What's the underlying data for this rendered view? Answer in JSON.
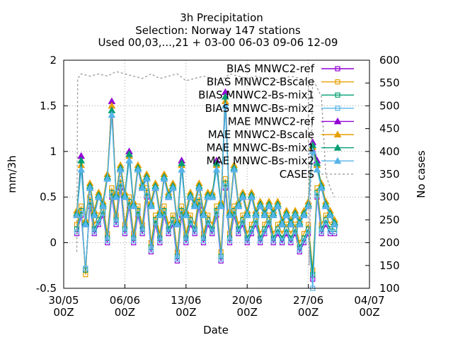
{
  "chart_data": {
    "type": "line",
    "title": [
      "3h Precipitation",
      "Selection: Norway     147 stations",
      "Used 00,03,...,21 + 03-00 06-03 09-06 12-09"
    ],
    "xlabel": "Date",
    "ylabel": "mm/3h",
    "y2label": "No cases",
    "ylim": [
      -0.5,
      2
    ],
    "y2lim": [
      100,
      600
    ],
    "yticks": [
      "-0.5",
      "0",
      "0.5",
      "1",
      "1.5",
      "2"
    ],
    "y2ticks": [
      "100",
      "150",
      "200",
      "250",
      "300",
      "350",
      "400",
      "450",
      "500",
      "550",
      "600"
    ],
    "xticks": [
      {
        "day": 0,
        "label": "30/05",
        "sub": "00Z"
      },
      {
        "day": 7,
        "label": "06/06",
        "sub": "00Z"
      },
      {
        "day": 14,
        "label": "13/06",
        "sub": "00Z"
      },
      {
        "day": 21,
        "label": "20/06",
        "sub": "00Z"
      },
      {
        "day": 28,
        "label": "27/06",
        "sub": "00Z"
      },
      {
        "day": 35,
        "label": "04/07",
        "sub": "00Z"
      }
    ],
    "xlim_days": [
      0,
      35
    ],
    "grid": true,
    "legend_position": "top-right",
    "series": [
      {
        "name": "BIAS MNWC2-ref",
        "color": "#9400d3",
        "marker": "square",
        "axis": "y",
        "x": [
          1.5,
          2,
          2.5,
          3,
          3.5,
          4,
          4.5,
          5,
          5.5,
          6,
          6.5,
          7,
          7.5,
          8,
          8.5,
          9,
          9.5,
          10,
          10.5,
          11,
          11.5,
          12,
          12.5,
          13,
          13.5,
          14,
          14.5,
          15,
          15.5,
          16,
          16.5,
          17,
          17.5,
          18,
          18.5,
          19,
          19.5,
          20,
          20.5,
          21,
          21.5,
          22,
          22.5,
          23,
          23.5,
          24,
          24.5,
          25,
          25.5,
          26,
          26.5,
          27,
          27.5,
          28,
          28.5,
          29,
          29.5,
          30,
          30.5,
          31
        ],
        "y": [
          0.1,
          0.3,
          -0.3,
          0.4,
          0.1,
          0.2,
          0.3,
          0.0,
          0.5,
          0.2,
          0.6,
          0.1,
          0.4,
          0.0,
          0.3,
          0.1,
          0.5,
          -0.1,
          0.2,
          0.0,
          0.3,
          0.1,
          0.2,
          -0.2,
          0.3,
          0.0,
          0.2,
          0.1,
          0.4,
          0.0,
          0.2,
          0.1,
          0.3,
          -0.2,
          0.6,
          0.0,
          0.3,
          0.1,
          0.2,
          0.0,
          0.1,
          0.2,
          0.0,
          0.1,
          0.2,
          0.0,
          0.1,
          0.0,
          0.1,
          0.0,
          0.1,
          -0.1,
          0.0,
          0.1,
          -0.4,
          0.5,
          0.1,
          0.2,
          0.1,
          0.1
        ]
      },
      {
        "name": "BIAS MNWC2-Bscale",
        "color": "#e69f00",
        "marker": "square",
        "axis": "y",
        "x": [
          1.5,
          2,
          2.5,
          3,
          3.5,
          4,
          4.5,
          5,
          5.5,
          6,
          6.5,
          7,
          7.5,
          8,
          8.5,
          9,
          9.5,
          10,
          10.5,
          11,
          11.5,
          12,
          12.5,
          13,
          13.5,
          14,
          14.5,
          15,
          15.5,
          16,
          16.5,
          17,
          17.5,
          18,
          18.5,
          19,
          19.5,
          20,
          20.5,
          21,
          21.5,
          22,
          22.5,
          23,
          23.5,
          24,
          24.5,
          25,
          25.5,
          26,
          26.5,
          27,
          27.5,
          28,
          28.5,
          29,
          29.5,
          30,
          30.5,
          31
        ],
        "y": [
          0.2,
          0.4,
          -0.35,
          0.5,
          0.2,
          0.3,
          0.4,
          0.1,
          0.6,
          0.3,
          0.7,
          0.2,
          0.5,
          0.1,
          0.4,
          0.2,
          0.6,
          0.0,
          0.3,
          0.1,
          0.4,
          0.2,
          0.3,
          -0.1,
          0.4,
          0.1,
          0.3,
          0.2,
          0.5,
          0.1,
          0.3,
          0.2,
          0.4,
          -0.1,
          0.7,
          0.1,
          0.4,
          0.2,
          0.3,
          0.1,
          0.2,
          0.3,
          0.1,
          0.2,
          0.3,
          0.1,
          0.2,
          0.1,
          0.2,
          0.1,
          0.2,
          0.0,
          0.1,
          0.2,
          -0.3,
          0.6,
          0.2,
          0.3,
          0.2,
          0.2
        ]
      },
      {
        "name": "BIAS MNWC2-Bs-mix1",
        "color": "#009e73",
        "marker": "square",
        "axis": "y",
        "x": [
          1.5,
          2,
          2.5,
          3,
          3.5,
          4,
          4.5,
          5,
          5.5,
          6,
          6.5,
          7,
          7.5,
          8,
          8.5,
          9,
          9.5,
          10,
          10.5,
          11,
          11.5,
          12,
          12.5,
          13,
          13.5,
          14,
          14.5,
          15,
          15.5,
          16,
          16.5,
          17,
          17.5,
          18,
          18.5,
          19,
          19.5,
          20,
          20.5,
          21,
          21.5,
          22,
          22.5,
          23,
          23.5,
          24,
          24.5,
          25,
          25.5,
          26,
          26.5,
          27,
          27.5,
          28,
          28.5,
          29,
          29.5,
          30,
          30.5,
          31
        ],
        "y": [
          0.15,
          0.35,
          -0.3,
          0.45,
          0.15,
          0.25,
          0.35,
          0.05,
          0.55,
          0.25,
          0.65,
          0.15,
          0.45,
          0.05,
          0.35,
          0.15,
          0.55,
          -0.05,
          0.25,
          0.05,
          0.35,
          0.15,
          0.25,
          -0.15,
          0.35,
          0.05,
          0.25,
          0.15,
          0.45,
          0.05,
          0.25,
          0.15,
          0.35,
          -0.15,
          0.65,
          0.05,
          0.35,
          0.15,
          0.25,
          0.05,
          0.15,
          0.25,
          0.05,
          0.15,
          0.25,
          0.05,
          0.15,
          0.05,
          0.15,
          0.05,
          0.15,
          -0.05,
          0.05,
          0.15,
          -0.35,
          0.55,
          0.15,
          0.25,
          0.15,
          0.15
        ]
      },
      {
        "name": "BIAS MNWC-Bs-mix2",
        "color": "#56b4e9",
        "marker": "square",
        "axis": "y",
        "x": [
          1.5,
          2,
          2.5,
          3,
          3.5,
          4,
          4.5,
          5,
          5.5,
          6,
          6.5,
          7,
          7.5,
          8,
          8.5,
          9,
          9.5,
          10,
          10.5,
          11,
          11.5,
          12,
          12.5,
          13,
          13.5,
          14,
          14.5,
          15,
          15.5,
          16,
          16.5,
          17,
          17.5,
          18,
          18.5,
          19,
          19.5,
          20,
          20.5,
          21,
          21.5,
          22,
          22.5,
          23,
          23.5,
          24,
          24.5,
          25,
          25.5,
          26,
          26.5,
          27,
          27.5,
          28,
          28.5,
          29,
          29.5,
          30,
          30.5,
          31
        ],
        "y": [
          0.12,
          0.32,
          -0.28,
          0.42,
          0.12,
          0.22,
          0.32,
          0.02,
          0.52,
          0.22,
          0.62,
          0.12,
          0.42,
          0.02,
          0.32,
          0.12,
          0.52,
          -0.08,
          0.22,
          0.02,
          0.32,
          0.12,
          0.22,
          -0.18,
          0.32,
          0.02,
          0.22,
          0.12,
          0.42,
          0.02,
          0.22,
          0.12,
          0.32,
          -0.18,
          0.62,
          0.02,
          0.32,
          0.12,
          0.22,
          0.02,
          0.12,
          0.22,
          0.02,
          0.12,
          0.22,
          0.02,
          0.12,
          0.02,
          0.12,
          0.02,
          0.12,
          -0.08,
          0.02,
          0.12,
          -0.5,
          0.52,
          0.12,
          0.22,
          0.12,
          0.12
        ]
      },
      {
        "name": "MAE MNWC2-ref",
        "color": "#9400d3",
        "marker": "triangle",
        "axis": "y",
        "x": [
          1.5,
          2,
          2.5,
          3,
          3.5,
          4,
          4.5,
          5,
          5.5,
          6,
          6.5,
          7,
          7.5,
          8,
          8.5,
          9,
          9.5,
          10,
          10.5,
          11,
          11.5,
          12,
          12.5,
          13,
          13.5,
          14,
          14.5,
          15,
          15.5,
          16,
          16.5,
          17,
          17.5,
          18,
          18.5,
          19,
          19.5,
          20,
          20.5,
          21,
          21.5,
          22,
          22.5,
          23,
          23.5,
          24,
          24.5,
          25,
          25.5,
          26,
          26.5,
          27,
          27.5,
          28,
          28.5,
          29,
          29.5,
          30,
          30.5,
          31
        ],
        "y": [
          0.3,
          0.95,
          0.2,
          0.6,
          0.3,
          0.5,
          0.4,
          0.7,
          1.55,
          0.5,
          0.8,
          0.5,
          1.0,
          0.4,
          0.8,
          0.6,
          0.7,
          0.4,
          0.6,
          0.3,
          0.7,
          0.5,
          0.6,
          0.2,
          0.9,
          0.3,
          0.5,
          0.4,
          0.6,
          0.3,
          0.5,
          0.5,
          0.9,
          0.4,
          1.65,
          0.3,
          0.8,
          0.4,
          0.5,
          0.3,
          0.5,
          0.3,
          0.4,
          0.3,
          0.4,
          0.3,
          0.4,
          0.2,
          0.3,
          0.2,
          0.3,
          0.2,
          0.3,
          0.4,
          1.1,
          0.9,
          0.6,
          0.4,
          0.3,
          0.2
        ]
      },
      {
        "name": "MAE MNWC2-Bscale",
        "color": "#e69f00",
        "marker": "triangle",
        "axis": "y",
        "x": [
          1.5,
          2,
          2.5,
          3,
          3.5,
          4,
          4.5,
          5,
          5.5,
          6,
          6.5,
          7,
          7.5,
          8,
          8.5,
          9,
          9.5,
          10,
          10.5,
          11,
          11.5,
          12,
          12.5,
          13,
          13.5,
          14,
          14.5,
          15,
          15.5,
          16,
          16.5,
          17,
          17.5,
          18,
          18.5,
          19,
          19.5,
          20,
          20.5,
          21,
          21.5,
          22,
          22.5,
          23,
          23.5,
          24,
          24.5,
          25,
          25.5,
          26,
          26.5,
          27,
          27.5,
          28,
          28.5,
          29,
          29.5,
          30,
          30.5,
          31
        ],
        "y": [
          0.35,
          0.85,
          0.25,
          0.65,
          0.35,
          0.55,
          0.45,
          0.75,
          1.5,
          0.55,
          0.85,
          0.55,
          0.95,
          0.45,
          0.85,
          0.65,
          0.75,
          0.45,
          0.65,
          0.35,
          0.75,
          0.55,
          0.65,
          0.25,
          0.85,
          0.35,
          0.55,
          0.45,
          0.65,
          0.35,
          0.55,
          0.55,
          0.85,
          0.45,
          1.55,
          0.35,
          0.85,
          0.45,
          0.55,
          0.35,
          0.55,
          0.35,
          0.45,
          0.35,
          0.45,
          0.35,
          0.45,
          0.25,
          0.35,
          0.25,
          0.35,
          0.25,
          0.35,
          0.45,
          1.05,
          0.85,
          0.65,
          0.45,
          0.35,
          0.25
        ]
      },
      {
        "name": "MAE MNWC-Bs-mix1",
        "color": "#009e73",
        "marker": "triangle",
        "axis": "y",
        "x": [
          1.5,
          2,
          2.5,
          3,
          3.5,
          4,
          4.5,
          5,
          5.5,
          6,
          6.5,
          7,
          7.5,
          8,
          8.5,
          9,
          9.5,
          10,
          10.5,
          11,
          11.5,
          12,
          12.5,
          13,
          13.5,
          14,
          14.5,
          15,
          15.5,
          16,
          16.5,
          17,
          17.5,
          18,
          18.5,
          19,
          19.5,
          20,
          20.5,
          21,
          21.5,
          22,
          22.5,
          23,
          23.5,
          24,
          24.5,
          25,
          25.5,
          26,
          26.5,
          27,
          27.5,
          28,
          28.5,
          29,
          29.5,
          30,
          30.5,
          31
        ],
        "y": [
          0.32,
          0.9,
          0.22,
          0.62,
          0.32,
          0.52,
          0.42,
          0.72,
          1.45,
          0.52,
          0.82,
          0.52,
          0.97,
          0.42,
          0.82,
          0.62,
          0.72,
          0.42,
          0.62,
          0.32,
          0.72,
          0.52,
          0.62,
          0.22,
          0.87,
          0.32,
          0.52,
          0.42,
          0.62,
          0.32,
          0.52,
          0.52,
          0.87,
          0.42,
          1.6,
          0.32,
          0.82,
          0.42,
          0.52,
          0.32,
          0.52,
          0.32,
          0.42,
          0.32,
          0.42,
          0.32,
          0.42,
          0.22,
          0.32,
          0.22,
          0.32,
          0.22,
          0.32,
          0.42,
          1.07,
          0.87,
          0.62,
          0.42,
          0.32,
          0.22
        ]
      },
      {
        "name": "MAE MNWC-Bs-mix2",
        "color": "#56b4e9",
        "marker": "triangle",
        "axis": "y",
        "x": [
          1.5,
          2,
          2.5,
          3,
          3.5,
          4,
          4.5,
          5,
          5.5,
          6,
          6.5,
          7,
          7.5,
          8,
          8.5,
          9,
          9.5,
          10,
          10.5,
          11,
          11.5,
          12,
          12.5,
          13,
          13.5,
          14,
          14.5,
          15,
          15.5,
          16,
          16.5,
          17,
          17.5,
          18,
          18.5,
          19,
          19.5,
          20,
          20.5,
          21,
          21.5,
          22,
          22.5,
          23,
          23.5,
          24,
          24.5,
          25,
          25.5,
          26,
          26.5,
          27,
          27.5,
          28,
          28.5,
          29,
          29.5,
          30,
          30.5,
          31
        ],
        "y": [
          0.3,
          0.8,
          0.2,
          0.6,
          0.3,
          0.5,
          0.4,
          0.7,
          1.4,
          0.5,
          0.8,
          0.5,
          0.9,
          0.4,
          0.8,
          0.6,
          0.7,
          0.4,
          0.6,
          0.3,
          0.7,
          0.5,
          0.6,
          0.2,
          0.8,
          0.3,
          0.5,
          0.4,
          0.6,
          0.3,
          0.5,
          0.5,
          0.8,
          0.4,
          1.5,
          0.3,
          0.8,
          0.4,
          0.5,
          0.3,
          0.5,
          0.3,
          0.4,
          0.3,
          0.4,
          0.3,
          0.4,
          0.2,
          0.3,
          0.2,
          0.3,
          0.2,
          0.3,
          0.4,
          1.0,
          0.8,
          0.6,
          0.4,
          0.3,
          0.2
        ]
      },
      {
        "name": "CASES",
        "color": "#a0a0a0",
        "marker": "none",
        "dash": true,
        "axis": "y2",
        "x": [
          1.5,
          1.6,
          2,
          3,
          4,
          5,
          6,
          7,
          8,
          9,
          10,
          11,
          12,
          13,
          14,
          15,
          16,
          17,
          18,
          19,
          20,
          21,
          22,
          23,
          24,
          25,
          26,
          27,
          28,
          28.1,
          28.5,
          29,
          29.5,
          30,
          30.5,
          31
        ],
        "y": [
          180,
          560,
          570,
          565,
          570,
          565,
          575,
          570,
          565,
          560,
          570,
          560,
          565,
          570,
          555,
          560,
          565,
          560,
          555,
          570,
          565,
          560,
          565,
          560,
          555,
          560,
          565,
          560,
          555,
          150,
          560,
          540,
          520,
          350,
          320,
          300
        ]
      }
    ]
  }
}
